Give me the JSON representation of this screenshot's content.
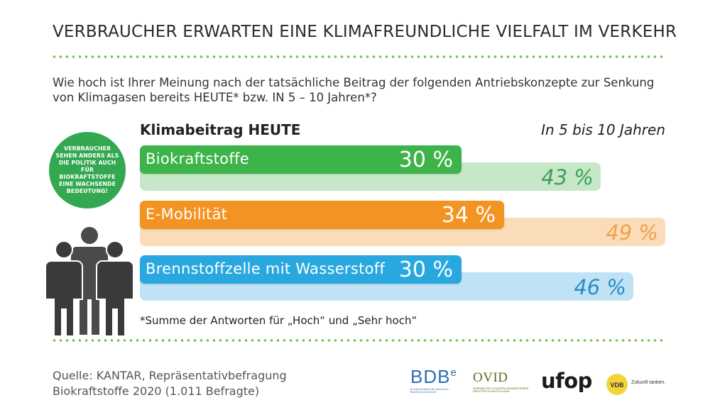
{
  "header": {
    "title": "VERBRAUCHER ERWARTEN EINE KLIMAFREUNDLICHE VIELFALT IM VERKEHR",
    "question": "Wie hoch ist Ihrer Meinung nach der tatsächliche Beitrag der folgenden Antriebskonzepte zur Senkung von Klimagasen bereits HEUTE* bzw. IN 5 – 10 Jahren*?"
  },
  "badge": {
    "text": "VERBRAUCHER SEHEN ANDERS ALS DIE POLITIK AUCH FÜR BIOKRAFTSTOFFE EINE WACHSENDE BEDEUTUNG!"
  },
  "chart_data": {
    "type": "bar",
    "orientation": "horizontal",
    "title": "",
    "categories": [
      "Biokraftstoffe",
      "E-Mobilität",
      "Brennstoffzelle mit Wasserstoff"
    ],
    "series": [
      {
        "name": "Klimabeitrag HEUTE",
        "values": [
          30,
          34,
          30
        ],
        "labels": [
          "30 %",
          "34 %",
          "30 %"
        ]
      },
      {
        "name": "In 5 bis 10 Jahren",
        "values": [
          43,
          49,
          46
        ],
        "labels": [
          "43 %",
          "49 %",
          "46 %"
        ]
      }
    ],
    "colors": {
      "today": [
        "#3cb449",
        "#f39321",
        "#29a8e0"
      ],
      "future": [
        "#c6e8c9",
        "#fbdcb8",
        "#bfe3f5"
      ],
      "future_text": [
        "#3e9e53",
        "#f0a04b",
        "#2a8cc4"
      ]
    },
    "xlim": [
      0,
      49
    ]
  },
  "footnote": "*Summe der Antworten für „Hoch“ und „Sehr hoch“",
  "source": {
    "line1": "Quelle: KANTAR, Repräsentativbefragung",
    "line2": "Biokraftstoffe 2020 (1.011 Befragte)"
  },
  "logos": {
    "bdb": "BDB",
    "bdb_sup": "e",
    "bdb_sub": "Bundesverband der deutschen Bioethanolwirtschaft",
    "ovid": "OVID",
    "ovid_sub": "VERBAND DER ÖLSAATEN-VERARBEITENDEN INDUSTRIE IN DEUTSCHLAND",
    "ufop": "ufop",
    "vdb": "VDB",
    "vdb_claim": "Zukunft tanken."
  }
}
